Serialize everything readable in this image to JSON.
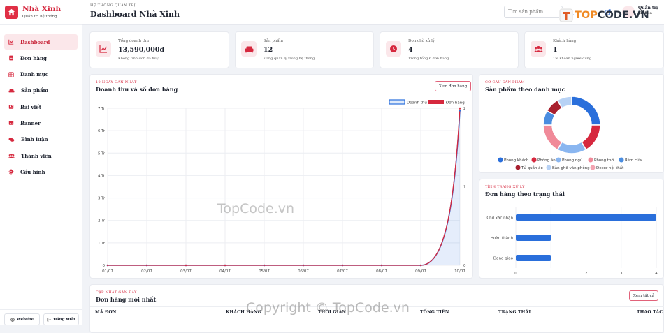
{
  "sidebar": {
    "brand_name": "Nhà Xinh",
    "brand_sub": "Quản trị hệ thống",
    "items": [
      {
        "label": "Dashboard",
        "icon": "chart-line-icon",
        "active": true
      },
      {
        "label": "Đơn hàng",
        "icon": "receipt-icon",
        "active": false
      },
      {
        "label": "Danh mục",
        "icon": "grid-icon",
        "active": false
      },
      {
        "label": "Sản phẩm",
        "icon": "sofa-icon",
        "active": false
      },
      {
        "label": "Bài viết",
        "icon": "newspaper-icon",
        "active": false
      },
      {
        "label": "Banner",
        "icon": "image-icon",
        "active": false
      },
      {
        "label": "Bình luận",
        "icon": "comments-icon",
        "active": false
      },
      {
        "label": "Thành viên",
        "icon": "users-icon",
        "active": false
      },
      {
        "label": "Cấu hình",
        "icon": "gear-icon",
        "active": false
      }
    ],
    "website_label": "Website",
    "logout_label": "Đăng xuất"
  },
  "topbar": {
    "kicker": "HỆ THỐNG QUẢN TRỊ",
    "title": "Dashboard Nhà Xinh",
    "search_placeholder": "Tìm sản phẩm",
    "admin_name": "Quản trị viên",
    "admin_role": "Tài viên"
  },
  "stats": [
    {
      "label": "Tổng doanh thu",
      "value": "13,590,000đ",
      "note": "Không tính đơn đã hủy"
    },
    {
      "label": "Sản phẩm",
      "value": "12",
      "note": "Đang quản lý trong hệ thống"
    },
    {
      "label": "Đơn chờ xử lý",
      "value": "4",
      "note": "Trong tổng 6 đơn hàng"
    },
    {
      "label": "Khách hàng",
      "value": "1",
      "note": "Tài khoản người dùng"
    }
  ],
  "revenue_card": {
    "kicker": "10 NGÀY GẦN NHẤT",
    "title": "Doanh thu và số đơn hàng",
    "button": "Xem đơn hàng"
  },
  "category_card": {
    "kicker": "CƠ CẤU SẢN PHẨM",
    "title": "Sản phẩm theo danh mục"
  },
  "status_card": {
    "kicker": "TÌNH TRẠNG XỬ LÝ",
    "title": "Đơn hàng theo trạng thái"
  },
  "recent_card": {
    "kicker": "CẬP NHẬT GẦN ĐÂY",
    "title": "Đơn hàng mới nhất",
    "button": "Xem tất cả",
    "columns": [
      "MÃ ĐƠN",
      "KHÁCH HÀNG",
      "THỜI GIAN",
      "TỔNG TIỀN",
      "TRẠNG THÁI",
      "THAO TÁC"
    ]
  },
  "watermarks": {
    "logo_prefix": "TOP",
    "logo_suffix": "CODE.VN",
    "center": "TopCode.vn",
    "bottom": "Copyright © TopCode.vn"
  },
  "colors": {
    "accent": "#d6283e",
    "blue": "#2a6fdb",
    "light_blue": "#8ab6f0"
  },
  "chart_data": [
    {
      "type": "line",
      "x": [
        "01/07",
        "02/07",
        "03/07",
        "04/07",
        "05/07",
        "06/07",
        "07/07",
        "08/07",
        "09/07",
        "10/07"
      ],
      "y_tick_labels": [
        "0",
        "1 Tr",
        "2 Tr",
        "3 Tr",
        "4 Tr",
        "5 Tr",
        "6 Tr",
        "7 Tr"
      ],
      "y2_tick_labels": [
        "0",
        "1",
        "2"
      ],
      "ylim": [
        0,
        7000000
      ],
      "y2lim": [
        0,
        2
      ],
      "series": [
        {
          "name": "Doanh thu",
          "axis": "left",
          "values": [
            0,
            0,
            0,
            0,
            0,
            0,
            0,
            0,
            0,
            6900000
          ],
          "color": "#2a6fdb"
        },
        {
          "name": "Đơn hàng",
          "axis": "right",
          "values": [
            0,
            0,
            0,
            0,
            0,
            0,
            0,
            0,
            0,
            2
          ],
          "color": "#d6283e"
        }
      ]
    },
    {
      "type": "pie",
      "labels": [
        "Phòng khách",
        "Phòng ăn",
        "Phòng ngủ",
        "Phòng thờ",
        "Rèm cửa",
        "Tủ quần áo",
        "Bàn ghế văn phòng",
        "Decor nội thất"
      ],
      "values": [
        3,
        2,
        2,
        2,
        1,
        1,
        1,
        0
      ],
      "colors": [
        "#2a6fdb",
        "#d6283e",
        "#8ab6f0",
        "#f08a99",
        "#4a8de0",
        "#a8202f",
        "#b7d2f5",
        "#f3a3b0"
      ]
    },
    {
      "type": "bar",
      "orientation": "horizontal",
      "categories": [
        "Chờ xác nhận",
        "Hoàn thành",
        "Đang giao"
      ],
      "values": [
        4,
        1,
        1
      ],
      "xlim": [
        0,
        4
      ],
      "x_tick_labels": [
        "0",
        "1",
        "2",
        "3",
        "4"
      ],
      "color": "#2a6fdb"
    }
  ]
}
